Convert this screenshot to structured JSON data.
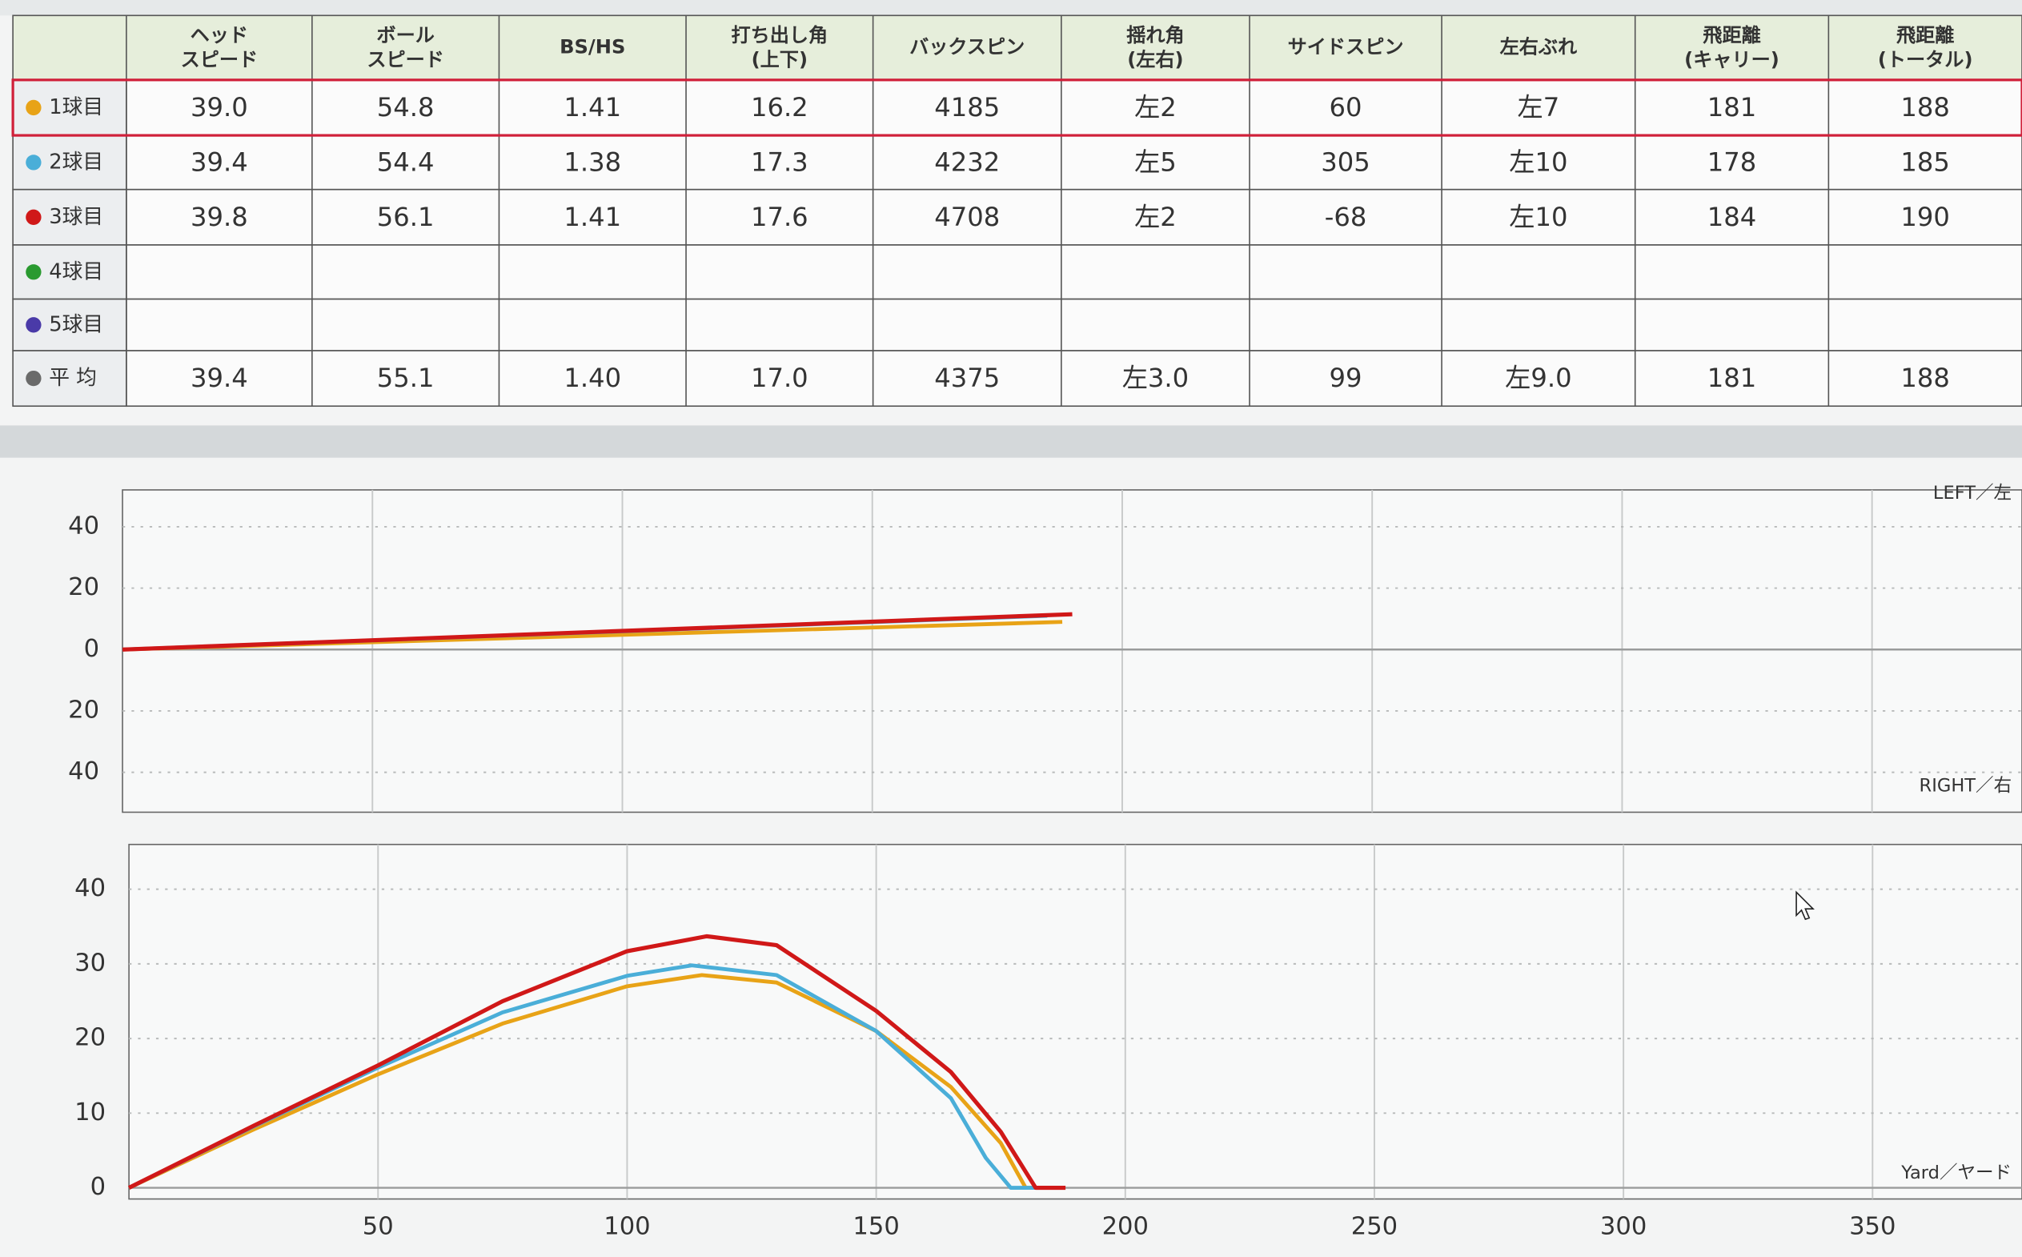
{
  "table": {
    "headers": [
      [
        "ヘッド",
        "スピード"
      ],
      [
        "ボール",
        "スピード"
      ],
      [
        "BS/HS"
      ],
      [
        "打ち出し角",
        "(上下)"
      ],
      [
        "バックスピン"
      ],
      [
        "揺れ角",
        "(左右)"
      ],
      [
        "サイドスピン"
      ],
      [
        "左右ぶれ"
      ],
      [
        "飛距離",
        "(キャリー)"
      ],
      [
        "飛距離",
        "(トータル)"
      ]
    ],
    "rows": [
      {
        "label": "1球目",
        "color": "#e8a317",
        "cells": [
          "39.0",
          "54.8",
          "1.41",
          "16.2",
          "4185",
          "左2",
          "60",
          "左7",
          "181",
          "188"
        ]
      },
      {
        "label": "2球目",
        "color": "#4aaed8",
        "cells": [
          "39.4",
          "54.4",
          "1.38",
          "17.3",
          "4232",
          "左5",
          "305",
          "左10",
          "178",
          "185"
        ]
      },
      {
        "label": "3球目",
        "color": "#d01818",
        "cells": [
          "39.8",
          "56.1",
          "1.41",
          "17.6",
          "4708",
          "左2",
          "-68",
          "左10",
          "184",
          "190"
        ]
      },
      {
        "label": "4球目",
        "color": "#2a9a30",
        "cells": []
      },
      {
        "label": "5球目",
        "color": "#4a3aa8",
        "cells": []
      },
      {
        "label": "平 均",
        "color": "#6a6a6a",
        "cells": [
          "39.4",
          "55.1",
          "1.40",
          "17.0",
          "4375",
          "左3.0",
          "99",
          "左9.0",
          "181",
          "188"
        ]
      }
    ]
  },
  "chart_data": [
    {
      "type": "line",
      "annotations": [
        "LEFT／左",
        "RIGHT／右"
      ],
      "xlim": [
        0,
        380
      ],
      "ylim": [
        -53,
        52
      ],
      "yticks": [
        40,
        20,
        0,
        {
          "value": -20,
          "label": "20"
        },
        {
          "value": -40,
          "label": "40"
        }
      ],
      "grid": true,
      "series": [
        {
          "color": "#e8a317",
          "x": [
            0,
            188
          ],
          "values": [
            0,
            9
          ]
        },
        {
          "color": "#4aaed8",
          "x": [
            0,
            185
          ],
          "values": [
            0,
            11
          ]
        },
        {
          "color": "#d01818",
          "x": [
            0,
            190
          ],
          "values": [
            0,
            11.5
          ]
        }
      ]
    },
    {
      "type": "line",
      "annotations": [
        "Yard／ヤード"
      ],
      "xlim": [
        0,
        380
      ],
      "ylim": [
        -1.5,
        46
      ],
      "xticks": [
        50,
        100,
        150,
        200,
        250,
        300,
        350
      ],
      "yticks": [
        0,
        10,
        20,
        30,
        40
      ],
      "grid": true,
      "series": [
        {
          "color": "#e8a317",
          "x": [
            0,
            25,
            50,
            75,
            100,
            115,
            130,
            150,
            165,
            175,
            180,
            183
          ],
          "values": [
            0,
            7.8,
            15.2,
            22,
            27,
            28.5,
            27.5,
            21,
            13.5,
            6,
            0,
            0
          ]
        },
        {
          "color": "#4aaed8",
          "x": [
            0,
            25,
            50,
            75,
            100,
            113,
            130,
            150,
            165,
            172,
            177,
            182
          ],
          "values": [
            0,
            8.2,
            16.1,
            23.5,
            28.4,
            29.8,
            28.5,
            21,
            12,
            4,
            0,
            0
          ]
        },
        {
          "color": "#d01818",
          "x": [
            0,
            25,
            50,
            75,
            100,
            116,
            130,
            150,
            165,
            175,
            182,
            188
          ],
          "values": [
            0,
            8.3,
            16.4,
            25,
            31.7,
            33.7,
            32.5,
            23.7,
            15.5,
            7.5,
            0,
            0
          ]
        }
      ]
    }
  ]
}
